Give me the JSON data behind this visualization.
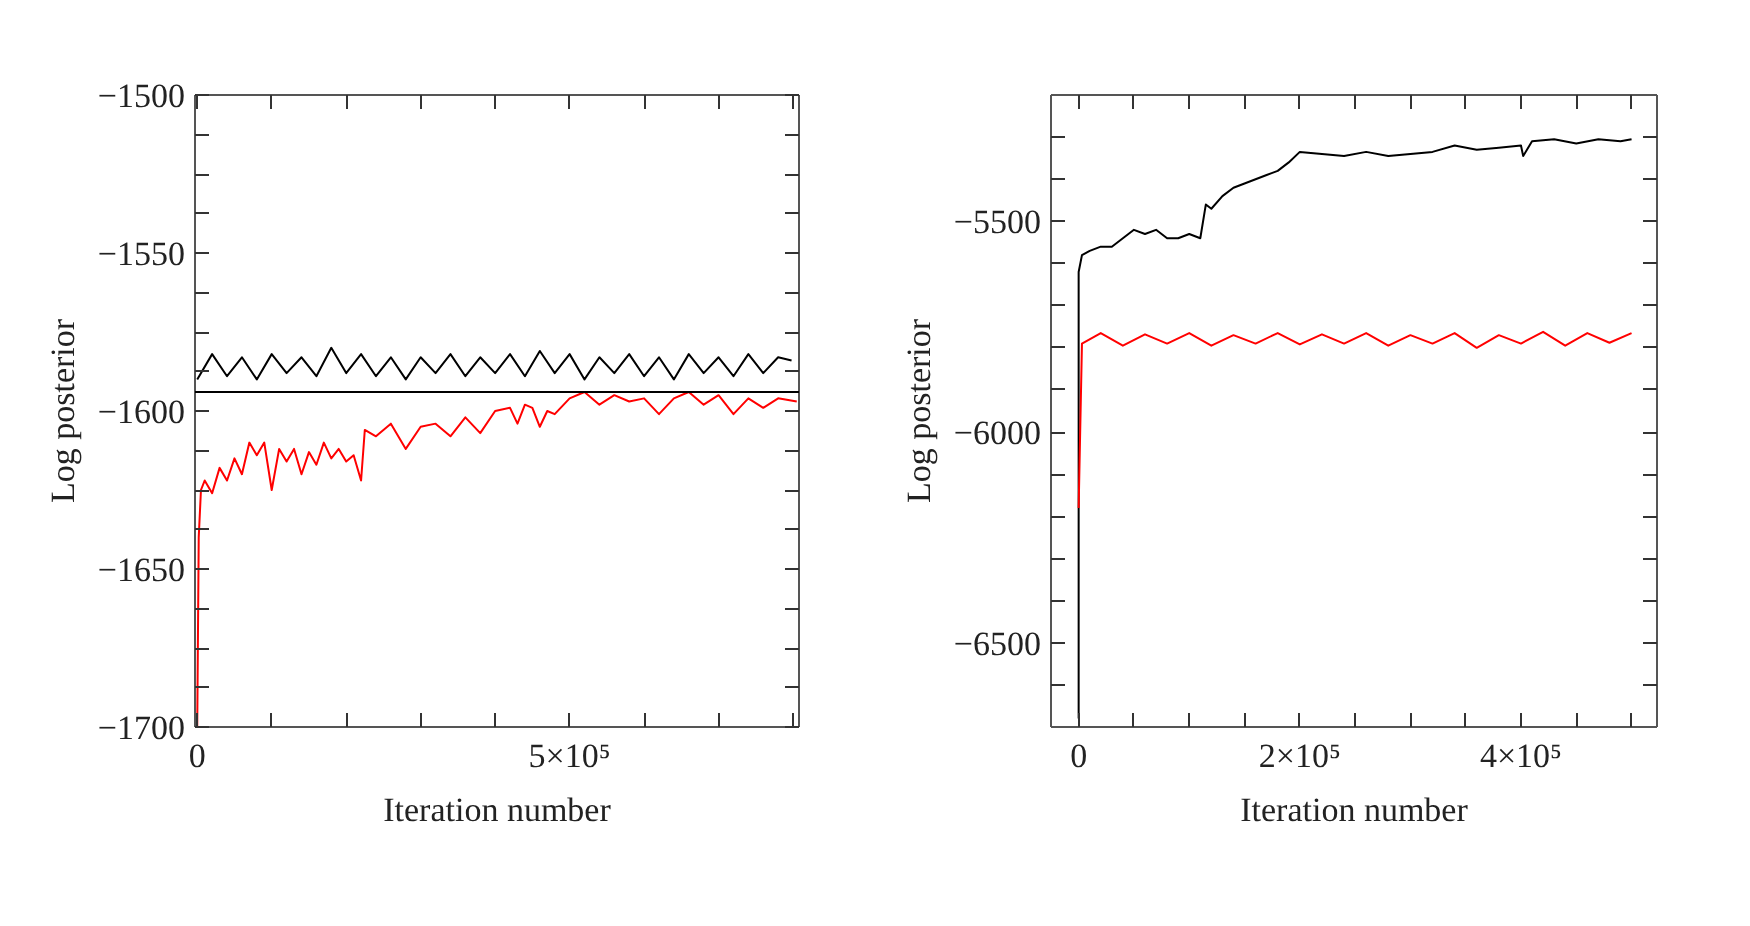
{
  "chart_data": [
    {
      "type": "line",
      "xlabel": "Iteration number",
      "ylabel": "Log posterior",
      "xlim": [
        -3000,
        808000
      ],
      "ylim": [
        -1700,
        -1500
      ],
      "xticks": [
        {
          "value": 0,
          "label": "0"
        },
        {
          "value": 100000,
          "label": null
        },
        {
          "value": 200000,
          "label": null
        },
        {
          "value": 300000,
          "label": null
        },
        {
          "value": 400000,
          "label": null
        },
        {
          "value": 500000,
          "label": "5×10⁵"
        },
        {
          "value": 600000,
          "label": null
        },
        {
          "value": 700000,
          "label": null
        },
        {
          "value": 800000,
          "label": null
        }
      ],
      "yticks": [
        {
          "value": -1700,
          "label": "−1700"
        },
        {
          "value": -1687.5,
          "label": null
        },
        {
          "value": -1675,
          "label": null
        },
        {
          "value": -1662.5,
          "label": null
        },
        {
          "value": -1650,
          "label": "−1650"
        },
        {
          "value": -1637.5,
          "label": null
        },
        {
          "value": -1625,
          "label": null
        },
        {
          "value": -1612.5,
          "label": null
        },
        {
          "value": -1600,
          "label": "−1600"
        },
        {
          "value": -1587.5,
          "label": null
        },
        {
          "value": -1575,
          "label": null
        },
        {
          "value": -1562.5,
          "label": null
        },
        {
          "value": -1550,
          "label": "−1550"
        },
        {
          "value": -1537.5,
          "label": null
        },
        {
          "value": -1525,
          "label": null
        },
        {
          "value": -1512.5,
          "label": null
        },
        {
          "value": -1500,
          "label": "−1500"
        }
      ],
      "ref_lines": [
        {
          "axis": "y",
          "value": -1594,
          "color": "#000000"
        }
      ],
      "series": [
        {
          "color": "#000000",
          "x": [
            0,
            20000,
            40000,
            60000,
            80000,
            100000,
            120000,
            140000,
            160000,
            180000,
            200000,
            220000,
            240000,
            260000,
            280000,
            300000,
            320000,
            340000,
            360000,
            380000,
            400000,
            420000,
            440000,
            460000,
            480000,
            500000,
            520000,
            540000,
            560000,
            580000,
            600000,
            620000,
            640000,
            660000,
            680000,
            700000,
            720000,
            740000,
            760000,
            780000,
            798000
          ],
          "values": [
            -1590,
            -1582,
            -1589,
            -1583,
            -1590,
            -1582,
            -1588,
            -1583,
            -1589,
            -1580,
            -1588,
            -1582,
            -1589,
            -1583,
            -1590,
            -1583,
            -1588,
            -1582,
            -1589,
            -1583,
            -1588,
            -1582,
            -1589,
            -1581,
            -1588,
            -1582,
            -1590,
            -1583,
            -1588,
            -1582,
            -1589,
            -1583,
            -1590,
            -1582,
            -1588,
            -1583,
            -1589,
            -1582,
            -1588,
            -1583,
            -1584
          ]
        },
        {
          "color": "#ff0000",
          "x": [
            0,
            2000,
            5000,
            10000,
            20000,
            30000,
            40000,
            50000,
            60000,
            70000,
            80000,
            90000,
            100000,
            110000,
            120000,
            130000,
            140000,
            150000,
            160000,
            170000,
            180000,
            190000,
            200000,
            210000,
            220000,
            225000,
            240000,
            260000,
            280000,
            300000,
            320000,
            340000,
            360000,
            380000,
            400000,
            420000,
            430000,
            440000,
            450000,
            460000,
            470000,
            480000,
            500000,
            520000,
            540000,
            560000,
            580000,
            600000,
            620000,
            640000,
            660000,
            680000,
            700000,
            720000,
            740000,
            760000,
            780000,
            805000
          ],
          "values": [
            -1700,
            -1640,
            -1625,
            -1622,
            -1626,
            -1618,
            -1622,
            -1615,
            -1620,
            -1610,
            -1614,
            -1610,
            -1625,
            -1612,
            -1616,
            -1612,
            -1620,
            -1613,
            -1617,
            -1610,
            -1615,
            -1612,
            -1616,
            -1614,
            -1622,
            -1606,
            -1608,
            -1604,
            -1612,
            -1605,
            -1604,
            -1608,
            -1602,
            -1607,
            -1600,
            -1599,
            -1604,
            -1598,
            -1599,
            -1605,
            -1600,
            -1601,
            -1596,
            -1594,
            -1598,
            -1595,
            -1597,
            -1596,
            -1601,
            -1596,
            -1594,
            -1598,
            -1595,
            -1601,
            -1596,
            -1599,
            -1596,
            -1597
          ]
        }
      ]
    },
    {
      "type": "line",
      "xlabel": "Iteration number",
      "ylabel": "Log posterior",
      "xlim": [
        -25000,
        523000
      ],
      "ylim": [
        -6700,
        -5200
      ],
      "xticks": [
        {
          "value": 0,
          "label": "0"
        },
        {
          "value": 50000,
          "label": null
        },
        {
          "value": 100000,
          "label": null
        },
        {
          "value": 150000,
          "label": null
        },
        {
          "value": 200000,
          "label": "2×10⁵"
        },
        {
          "value": 250000,
          "label": null
        },
        {
          "value": 300000,
          "label": null
        },
        {
          "value": 350000,
          "label": null
        },
        {
          "value": 400000,
          "label": "4×10⁵"
        },
        {
          "value": 450000,
          "label": null
        },
        {
          "value": 500000,
          "label": null
        }
      ],
      "yticks": [
        {
          "value": -6600,
          "label": null
        },
        {
          "value": -6500,
          "label": "−6500"
        },
        {
          "value": -6400,
          "label": null
        },
        {
          "value": -6300,
          "label": null
        },
        {
          "value": -6200,
          "label": null
        },
        {
          "value": -6100,
          "label": null
        },
        {
          "value": -6000,
          "label": "−6000"
        },
        {
          "value": -5900,
          "label": null
        },
        {
          "value": -5800,
          "label": null
        },
        {
          "value": -5700,
          "label": null
        },
        {
          "value": -5600,
          "label": null
        },
        {
          "value": -5500,
          "label": "−5500"
        },
        {
          "value": -5400,
          "label": null
        },
        {
          "value": -5300,
          "label": null
        }
      ],
      "series": [
        {
          "color": "#000000",
          "x": [
            0,
            0,
            3000,
            10000,
            20000,
            30000,
            40000,
            50000,
            60000,
            70000,
            80000,
            90000,
            100000,
            110000,
            115000,
            120000,
            130000,
            140000,
            150000,
            160000,
            170000,
            180000,
            190000,
            200000,
            220000,
            240000,
            260000,
            280000,
            300000,
            320000,
            340000,
            360000,
            380000,
            400000,
            402000,
            410000,
            430000,
            450000,
            470000,
            490000,
            500000
          ],
          "values": [
            -6680,
            -5620,
            -5580,
            -5570,
            -5560,
            -5560,
            -5540,
            -5520,
            -5530,
            -5520,
            -5540,
            -5540,
            -5530,
            -5540,
            -5460,
            -5470,
            -5440,
            -5420,
            -5410,
            -5400,
            -5390,
            -5380,
            -5360,
            -5335,
            -5340,
            -5345,
            -5335,
            -5345,
            -5340,
            -5335,
            -5320,
            -5330,
            -5325,
            -5320,
            -5345,
            -5310,
            -5305,
            -5315,
            -5305,
            -5310,
            -5305
          ]
        },
        {
          "color": "#ff0000",
          "x": [
            0,
            3000,
            20000,
            40000,
            60000,
            80000,
            100000,
            120000,
            140000,
            160000,
            180000,
            200000,
            220000,
            240000,
            260000,
            280000,
            300000,
            320000,
            340000,
            360000,
            380000,
            400000,
            420000,
            440000,
            460000,
            480000,
            500000
          ],
          "values": [
            -6180,
            -5790,
            -5765,
            -5795,
            -5768,
            -5790,
            -5765,
            -5795,
            -5770,
            -5790,
            -5765,
            -5792,
            -5768,
            -5790,
            -5765,
            -5795,
            -5770,
            -5790,
            -5765,
            -5800,
            -5770,
            -5790,
            -5762,
            -5795,
            -5765,
            -5788,
            -5765
          ]
        }
      ]
    }
  ]
}
